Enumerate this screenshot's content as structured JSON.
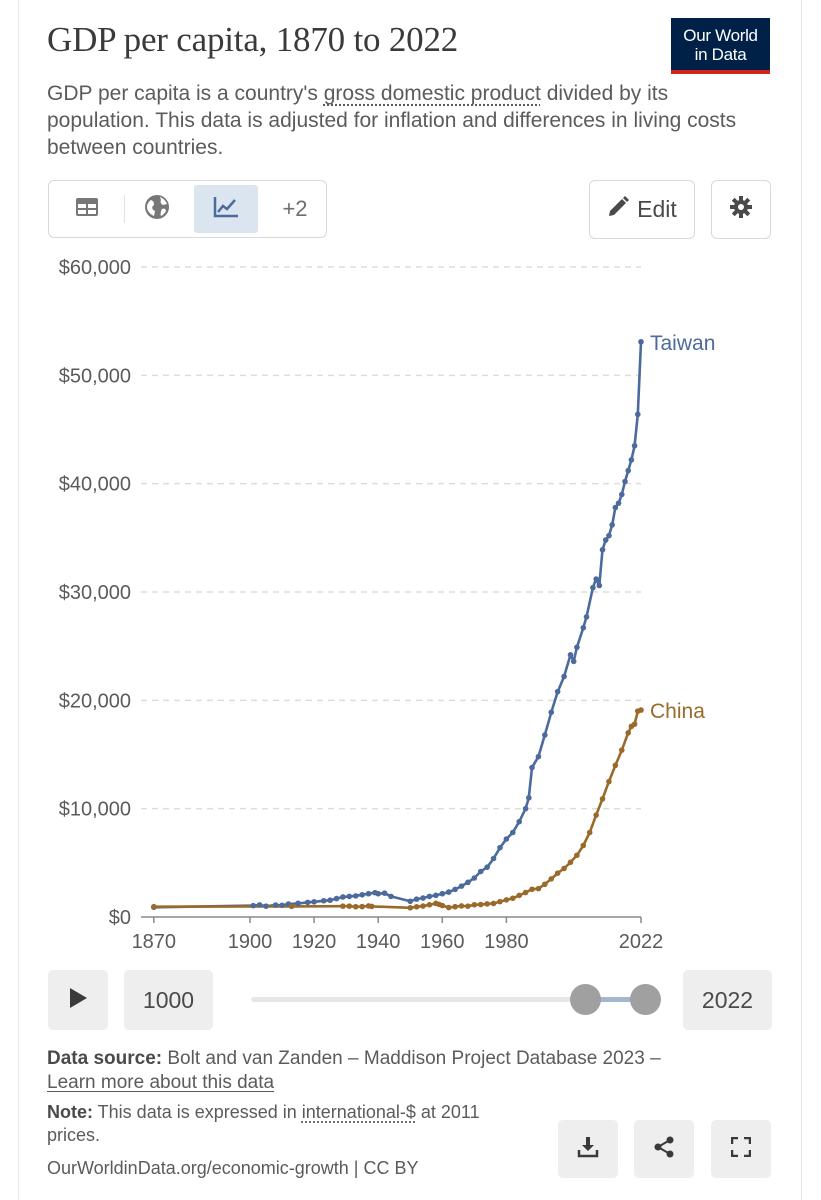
{
  "header": {
    "title": "GDP per capita, 1870 to 2022",
    "logo_line1": "Our World",
    "logo_line2": "in Data",
    "subtitle_pre": "GDP per capita is a country's ",
    "subtitle_link": "gross domestic product",
    "subtitle_post": " divided by its population. This data is adjusted for inflation and differences in living costs between countries."
  },
  "toolbar": {
    "tabs": [
      {
        "icon": "table-icon"
      },
      {
        "icon": "globe-icon"
      },
      {
        "icon": "line-chart-icon",
        "active": true
      },
      {
        "label": "+2"
      }
    ],
    "more_label": "+2",
    "edit_label": "Edit",
    "settings_icon": "gear-icon"
  },
  "chart_data": {
    "type": "line",
    "ylim": [
      0,
      60000
    ],
    "yticks": [
      0,
      10000,
      20000,
      30000,
      40000,
      50000,
      60000
    ],
    "ytick_labels": [
      "$0",
      "$10,000",
      "$20,000",
      "$30,000",
      "$40,000",
      "$50,000",
      "$60,000"
    ],
    "xticks": [
      1870,
      1900,
      1920,
      1940,
      1960,
      1980,
      2022
    ],
    "xtick_labels": [
      "1870",
      "1900",
      "1920",
      "1940",
      "1960",
      "1980",
      "2022"
    ],
    "grid": "horizontal dashed",
    "series": [
      {
        "name": "Taiwan",
        "color": "#4c6a9c",
        "points": [
          [
            1870,
            900
          ],
          [
            1901,
            1050
          ],
          [
            1903,
            1120
          ],
          [
            1905,
            1000
          ],
          [
            1908,
            1100
          ],
          [
            1910,
            1080
          ],
          [
            1912,
            1200
          ],
          [
            1915,
            1260
          ],
          [
            1918,
            1350
          ],
          [
            1920,
            1400
          ],
          [
            1923,
            1500
          ],
          [
            1925,
            1550
          ],
          [
            1927,
            1700
          ],
          [
            1929,
            1850
          ],
          [
            1931,
            1900
          ],
          [
            1933,
            1950
          ],
          [
            1935,
            2050
          ],
          [
            1937,
            2150
          ],
          [
            1939,
            2250
          ],
          [
            1940,
            2150
          ],
          [
            1942,
            2200
          ],
          [
            1944,
            1900
          ],
          [
            1950,
            1450
          ],
          [
            1952,
            1650
          ],
          [
            1954,
            1750
          ],
          [
            1956,
            1900
          ],
          [
            1958,
            2000
          ],
          [
            1960,
            2150
          ],
          [
            1962,
            2300
          ],
          [
            1964,
            2550
          ],
          [
            1966,
            2850
          ],
          [
            1968,
            3200
          ],
          [
            1970,
            3600
          ],
          [
            1972,
            4200
          ],
          [
            1974,
            4600
          ],
          [
            1976,
            5400
          ],
          [
            1978,
            6400
          ],
          [
            1980,
            7200
          ],
          [
            1982,
            7800
          ],
          [
            1984,
            8800
          ],
          [
            1986,
            10000
          ],
          [
            1987,
            11000
          ],
          [
            1988,
            13800
          ],
          [
            1990,
            14800
          ],
          [
            1992,
            16800
          ],
          [
            1994,
            18900
          ],
          [
            1996,
            20800
          ],
          [
            1998,
            22200
          ],
          [
            2000,
            24200
          ],
          [
            2001,
            23600
          ],
          [
            2002,
            24900
          ],
          [
            2004,
            26700
          ],
          [
            2005,
            27700
          ],
          [
            2007,
            30400
          ],
          [
            2008,
            31200
          ],
          [
            2009,
            30600
          ],
          [
            2010,
            33900
          ],
          [
            2011,
            34800
          ],
          [
            2012,
            35200
          ],
          [
            2013,
            36200
          ],
          [
            2014,
            37800
          ],
          [
            2015,
            38200
          ],
          [
            2016,
            39000
          ],
          [
            2017,
            40200
          ],
          [
            2018,
            41200
          ],
          [
            2019,
            42200
          ],
          [
            2020,
            43500
          ],
          [
            2021,
            46400
          ],
          [
            2022,
            53100
          ]
        ]
      },
      {
        "name": "China",
        "color": "#9a6a2b",
        "points": [
          [
            1870,
            950
          ],
          [
            1913,
            980
          ],
          [
            1929,
            1000
          ],
          [
            1931,
            1000
          ],
          [
            1933,
            950
          ],
          [
            1935,
            960
          ],
          [
            1937,
            1020
          ],
          [
            1938,
            980
          ],
          [
            1950,
            850
          ],
          [
            1952,
            940
          ],
          [
            1954,
            1010
          ],
          [
            1956,
            1130
          ],
          [
            1958,
            1260
          ],
          [
            1959,
            1160
          ],
          [
            1960,
            1060
          ],
          [
            1962,
            870
          ],
          [
            1964,
            950
          ],
          [
            1966,
            1020
          ],
          [
            1968,
            1000
          ],
          [
            1970,
            1130
          ],
          [
            1972,
            1150
          ],
          [
            1974,
            1210
          ],
          [
            1976,
            1250
          ],
          [
            1978,
            1420
          ],
          [
            1980,
            1580
          ],
          [
            1982,
            1730
          ],
          [
            1984,
            1990
          ],
          [
            1986,
            2260
          ],
          [
            1988,
            2560
          ],
          [
            1990,
            2620
          ],
          [
            1992,
            3020
          ],
          [
            1994,
            3520
          ],
          [
            1996,
            4050
          ],
          [
            1998,
            4480
          ],
          [
            2000,
            5050
          ],
          [
            2002,
            5700
          ],
          [
            2004,
            6600
          ],
          [
            2006,
            7800
          ],
          [
            2008,
            9400
          ],
          [
            2010,
            10900
          ],
          [
            2012,
            12500
          ],
          [
            2014,
            14000
          ],
          [
            2016,
            15400
          ],
          [
            2018,
            17000
          ],
          [
            2019,
            17600
          ],
          [
            2020,
            17800
          ],
          [
            2021,
            19000
          ],
          [
            2022,
            19100
          ]
        ]
      }
    ]
  },
  "timeline": {
    "start_label": "1000",
    "end_label": "2022"
  },
  "footer": {
    "source_label": "Data source:",
    "source_text": " Bolt and van Zanden – Maddison Project Database 2023 –",
    "learn_more": "Learn more about this data",
    "note_label": "Note:",
    "note_pre": " This data is expressed in ",
    "note_link": "international-$",
    "note_post": " at 2011 prices.",
    "url": "OurWorldinData.org/economic-growth | CC BY"
  }
}
